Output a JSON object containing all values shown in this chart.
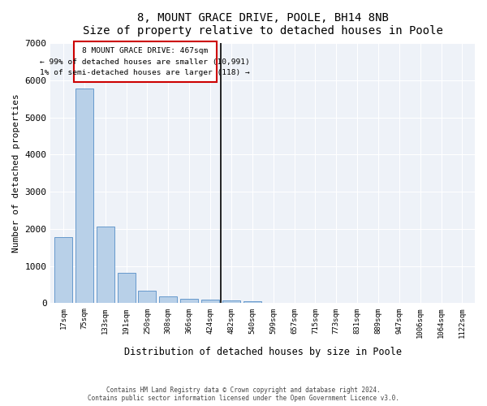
{
  "title": "8, MOUNT GRACE DRIVE, POOLE, BH14 8NB",
  "subtitle": "Size of property relative to detached houses in Poole",
  "xlabel": "Distribution of detached houses by size in Poole",
  "ylabel": "Number of detached properties",
  "bar_color": "#b8d0e8",
  "bar_edge_color": "#6699cc",
  "background_color": "#eef2f8",
  "grid_color": "#ffffff",
  "annotation_box_color": "#cc0000",
  "property_line_color": "#000000",
  "bins": [
    "17sqm",
    "75sqm",
    "133sqm",
    "191sqm",
    "250sqm",
    "308sqm",
    "366sqm",
    "424sqm",
    "482sqm",
    "540sqm",
    "599sqm",
    "657sqm",
    "715sqm",
    "773sqm",
    "831sqm",
    "889sqm",
    "947sqm",
    "1006sqm",
    "1064sqm",
    "1122sqm"
  ],
  "values": [
    1780,
    5780,
    2060,
    820,
    340,
    190,
    120,
    100,
    80,
    60,
    0,
    0,
    0,
    0,
    0,
    0,
    0,
    0,
    0,
    0
  ],
  "property_bin_index": 7.5,
  "annotation_title": "8 MOUNT GRACE DRIVE: 467sqm",
  "annotation_line1": "← 99% of detached houses are smaller (10,991)",
  "annotation_line2": "1% of semi-detached houses are larger (118) →",
  "ylim": [
    0,
    7000
  ],
  "yticks": [
    0,
    1000,
    2000,
    3000,
    4000,
    5000,
    6000,
    7000
  ],
  "footer1": "Contains HM Land Registry data © Crown copyright and database right 2024.",
  "footer2": "Contains public sector information licensed under the Open Government Licence v3.0."
}
